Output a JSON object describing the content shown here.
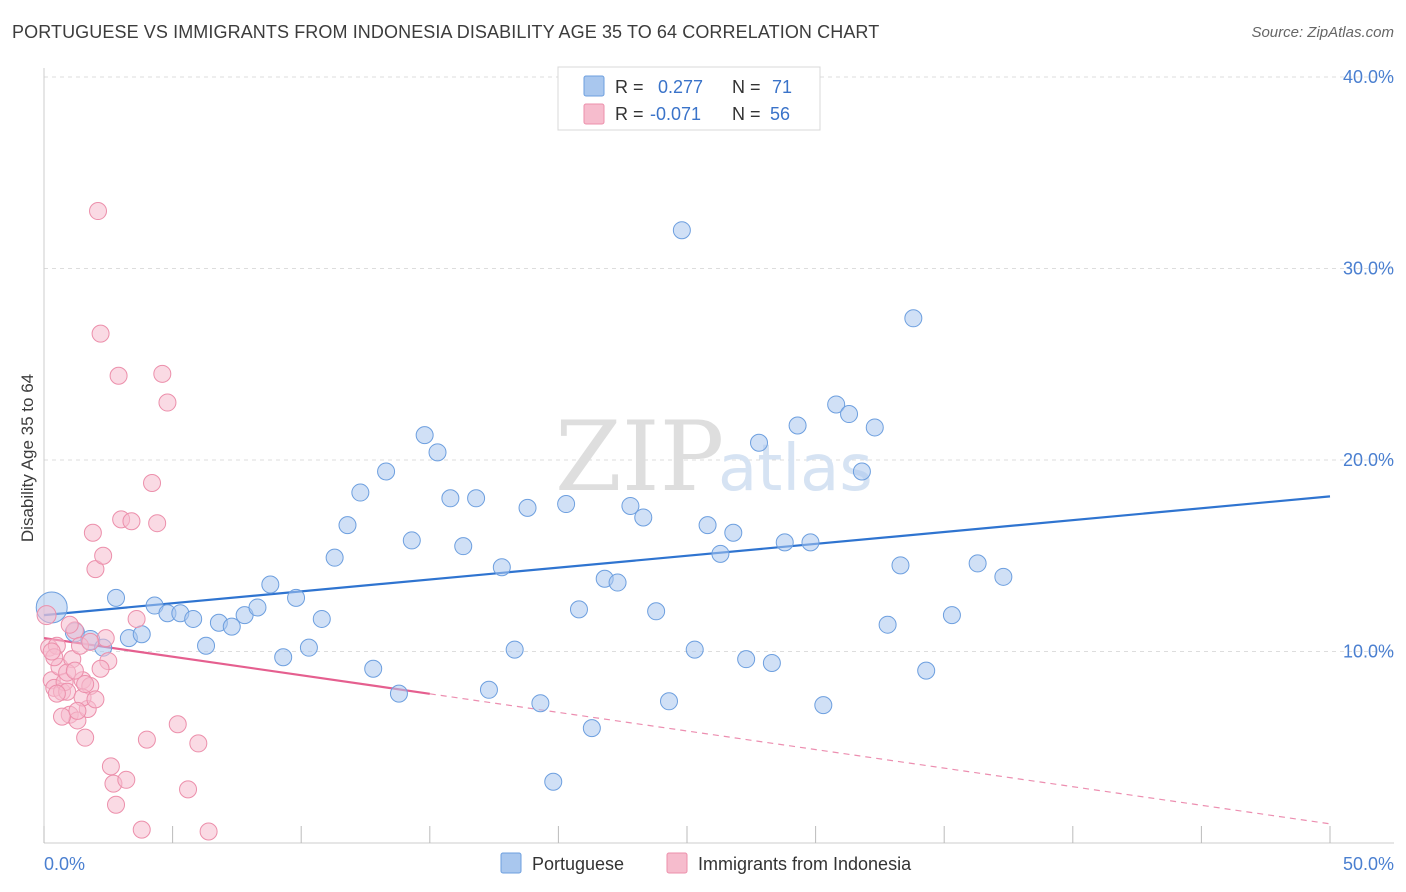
{
  "title": "PORTUGUESE VS IMMIGRANTS FROM INDONESIA DISABILITY AGE 35 TO 64 CORRELATION CHART",
  "source": "Source: ZipAtlas.com",
  "watermark": {
    "zip": "ZIP",
    "atlas": "atlas"
  },
  "colors": {
    "blue_fill": "#a9c7ee",
    "blue_stroke": "#6d9fdf",
    "blue_line": "#2f74d0",
    "pink_fill": "#f6bccd",
    "pink_stroke": "#ec8fab",
    "pink_line": "#e55f8f",
    "tick_label": "#4a7fd0",
    "grid": "#dddddd"
  },
  "legend": {
    "rows": [
      {
        "r_label": "R =",
        "r_value": "0.277",
        "n_label": "N =",
        "n_value": "71",
        "color": "blue"
      },
      {
        "r_label": "R =",
        "r_value": "-0.071",
        "n_label": "N =",
        "n_value": "56",
        "color": "pink"
      }
    ]
  },
  "chart_data": {
    "type": "scatter",
    "xlabel": "",
    "ylabel": "Disability Age 35 to 64",
    "xlim": [
      0,
      50
    ],
    "ylim": [
      0,
      40
    ],
    "x_tick_labels": [
      "0.0%",
      "50.0%"
    ],
    "y_ticks": [
      10,
      20,
      30,
      40
    ],
    "y_tick_labels": [
      "10.0%",
      "20.0%",
      "30.0%",
      "40.0%"
    ],
    "gridlines": "horizontal dashed",
    "series": [
      {
        "name": "Portuguese",
        "color": "blue",
        "trend": {
          "x": [
            0,
            50
          ],
          "y": [
            11.9,
            18.1
          ],
          "solid_to": 50
        },
        "points": [
          [
            0.3,
            12.3,
            28
          ],
          [
            1.2,
            11.0,
            16
          ],
          [
            1.8,
            10.6,
            16
          ],
          [
            2.3,
            10.2,
            14
          ],
          [
            2.8,
            12.8,
            14
          ],
          [
            3.3,
            10.7,
            14
          ],
          [
            3.8,
            10.9,
            14
          ],
          [
            4.3,
            12.4,
            14
          ],
          [
            4.8,
            12.0,
            14
          ],
          [
            5.3,
            12.0,
            14
          ],
          [
            5.8,
            11.7,
            14
          ],
          [
            6.3,
            10.3,
            14
          ],
          [
            6.8,
            11.5,
            14
          ],
          [
            7.3,
            11.3,
            14
          ],
          [
            7.8,
            11.9,
            14
          ],
          [
            8.3,
            12.3,
            14
          ],
          [
            8.8,
            13.5,
            14
          ],
          [
            9.3,
            9.7,
            14
          ],
          [
            9.8,
            12.8,
            14
          ],
          [
            10.3,
            10.2,
            14
          ],
          [
            10.8,
            11.7,
            14
          ],
          [
            11.3,
            14.9,
            14
          ],
          [
            11.8,
            16.6,
            14
          ],
          [
            12.3,
            18.3,
            14
          ],
          [
            12.8,
            9.1,
            14
          ],
          [
            13.3,
            19.4,
            14
          ],
          [
            13.8,
            7.8,
            14
          ],
          [
            14.3,
            15.8,
            14
          ],
          [
            14.8,
            21.3,
            14
          ],
          [
            15.3,
            20.4,
            14
          ],
          [
            15.8,
            18.0,
            14
          ],
          [
            16.3,
            15.5,
            14
          ],
          [
            16.8,
            18.0,
            14
          ],
          [
            17.3,
            8.0,
            14
          ],
          [
            17.8,
            14.4,
            14
          ],
          [
            18.3,
            10.1,
            14
          ],
          [
            18.8,
            17.5,
            14
          ],
          [
            19.3,
            7.3,
            14
          ],
          [
            19.8,
            3.2,
            14
          ],
          [
            20.3,
            17.7,
            14
          ],
          [
            20.8,
            12.2,
            14
          ],
          [
            21.3,
            6.0,
            14
          ],
          [
            21.8,
            13.8,
            14
          ],
          [
            22.3,
            13.6,
            14
          ],
          [
            22.8,
            17.6,
            14
          ],
          [
            23.3,
            17.0,
            14
          ],
          [
            23.8,
            12.1,
            14
          ],
          [
            24.3,
            7.4,
            14
          ],
          [
            24.8,
            32.0,
            14
          ],
          [
            25.3,
            10.1,
            14
          ],
          [
            25.8,
            16.6,
            14
          ],
          [
            26.3,
            15.1,
            14
          ],
          [
            26.8,
            16.2,
            14
          ],
          [
            27.3,
            9.6,
            14
          ],
          [
            27.8,
            20.9,
            14
          ],
          [
            28.3,
            9.4,
            14
          ],
          [
            28.8,
            15.7,
            14
          ],
          [
            29.3,
            21.8,
            14
          ],
          [
            29.8,
            15.7,
            14
          ],
          [
            30.3,
            7.2,
            14
          ],
          [
            30.8,
            22.9,
            14
          ],
          [
            31.3,
            22.4,
            14
          ],
          [
            31.8,
            19.4,
            14
          ],
          [
            32.3,
            21.7,
            14
          ],
          [
            32.8,
            11.4,
            14
          ],
          [
            33.3,
            14.5,
            14
          ],
          [
            33.8,
            27.4,
            14
          ],
          [
            34.3,
            9.0,
            14
          ],
          [
            35.3,
            11.9,
            14
          ],
          [
            36.3,
            14.6,
            14
          ],
          [
            37.3,
            13.9,
            14
          ]
        ]
      },
      {
        "name": "Immigrants from Indonesia",
        "color": "pink",
        "trend": {
          "x": [
            0,
            50
          ],
          "y": [
            10.7,
            1.0
          ],
          "solid_to": 15
        },
        "points": [
          [
            0.1,
            11.9,
            16
          ],
          [
            0.2,
            10.2,
            14
          ],
          [
            0.3,
            8.5,
            14
          ],
          [
            0.4,
            8.1,
            14
          ],
          [
            0.5,
            10.3,
            14
          ],
          [
            0.6,
            9.2,
            14
          ],
          [
            0.7,
            7.9,
            14
          ],
          [
            0.8,
            8.4,
            14
          ],
          [
            0.9,
            7.9,
            14
          ],
          [
            1.0,
            6.7,
            14
          ],
          [
            1.1,
            9.6,
            14
          ],
          [
            1.2,
            11.1,
            14
          ],
          [
            1.3,
            6.4,
            14
          ],
          [
            1.4,
            10.3,
            14
          ],
          [
            1.5,
            8.5,
            14
          ],
          [
            1.6,
            5.5,
            14
          ],
          [
            1.7,
            7.0,
            14
          ],
          [
            1.8,
            8.2,
            14
          ],
          [
            1.9,
            16.2,
            14
          ],
          [
            2.0,
            14.3,
            14
          ],
          [
            2.1,
            33.0,
            14
          ],
          [
            2.2,
            26.6,
            14
          ],
          [
            2.3,
            15.0,
            14
          ],
          [
            2.4,
            10.7,
            14
          ],
          [
            2.5,
            9.5,
            14
          ],
          [
            2.6,
            4.0,
            14
          ],
          [
            2.7,
            3.1,
            14
          ],
          [
            2.8,
            2.0,
            14
          ],
          [
            2.9,
            24.4,
            14
          ],
          [
            3.0,
            16.9,
            14
          ],
          [
            3.2,
            3.3,
            14
          ],
          [
            3.4,
            16.8,
            14
          ],
          [
            3.6,
            11.7,
            14
          ],
          [
            3.8,
            0.7,
            14
          ],
          [
            4.0,
            5.4,
            14
          ],
          [
            4.2,
            18.8,
            14
          ],
          [
            4.4,
            16.7,
            14
          ],
          [
            4.6,
            24.5,
            14
          ],
          [
            4.8,
            23.0,
            14
          ],
          [
            5.2,
            6.2,
            14
          ],
          [
            5.6,
            2.8,
            14
          ],
          [
            6.0,
            5.2,
            14
          ],
          [
            6.4,
            0.6,
            14
          ],
          [
            0.4,
            9.7,
            14
          ],
          [
            0.9,
            8.9,
            14
          ],
          [
            1.5,
            7.6,
            14
          ],
          [
            0.7,
            6.6,
            14
          ],
          [
            1.8,
            10.5,
            14
          ],
          [
            2.0,
            7.5,
            14
          ],
          [
            1.2,
            9.0,
            14
          ],
          [
            0.5,
            7.8,
            14
          ],
          [
            1.0,
            11.4,
            14
          ],
          [
            1.6,
            8.3,
            14
          ],
          [
            2.2,
            9.1,
            14
          ],
          [
            0.3,
            10.0,
            14
          ],
          [
            1.3,
            6.9,
            14
          ]
        ]
      }
    ]
  },
  "bottom_legend": {
    "items": [
      "Portuguese",
      "Immigrants from Indonesia"
    ]
  }
}
